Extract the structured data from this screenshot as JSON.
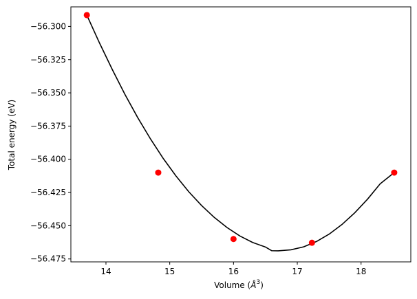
{
  "chart_data": {
    "type": "scatter",
    "title": "",
    "xlabel_prefix": "Volume (",
    "xlabel_unit": "Å",
    "xlabel_exp": "3",
    "xlabel_suffix": ")",
    "ylabel": "Total energy (eV)",
    "xlim": [
      13.45,
      18.78
    ],
    "ylim": [
      -56.4772,
      -56.2853
    ],
    "xticks": [
      14,
      15,
      16,
      17,
      18
    ],
    "xtick_labels": [
      "14",
      "15",
      "16",
      "17",
      "18"
    ],
    "yticks": [
      -56.3,
      -56.325,
      -56.35,
      -56.375,
      -56.4,
      -56.425,
      -56.45,
      -56.475
    ],
    "ytick_labels": [
      "−56.300",
      "−56.325",
      "−56.350",
      "−56.375",
      "−56.400",
      "−56.425",
      "−56.450",
      "−56.475"
    ],
    "grid": false,
    "points": {
      "x": [
        13.7,
        14.82,
        16.0,
        17.23,
        18.52
      ],
      "y": [
        -56.2915,
        -56.41,
        -56.46,
        -56.4628,
        -56.41
      ],
      "color": "#ff0000"
    },
    "fit_curve": {
      "x": [
        13.7,
        13.9,
        14.1,
        14.3,
        14.5,
        14.7,
        14.9,
        15.1,
        15.3,
        15.5,
        15.7,
        15.9,
        16.1,
        16.3,
        16.5,
        16.6,
        16.7,
        16.9,
        17.1,
        17.3,
        17.5,
        17.7,
        17.9,
        18.1,
        18.3,
        18.52
      ],
      "y": [
        -56.2915,
        -56.3126,
        -56.3325,
        -56.3514,
        -56.3688,
        -56.3848,
        -56.3995,
        -56.4127,
        -56.4245,
        -56.4348,
        -56.4438,
        -56.4514,
        -56.4577,
        -56.4626,
        -56.466,
        -56.4688,
        -56.4689,
        -56.4681,
        -56.4659,
        -56.4619,
        -56.4563,
        -56.4491,
        -56.4403,
        -56.4301,
        -56.4184,
        -56.41
      ],
      "color": "#000000"
    }
  }
}
